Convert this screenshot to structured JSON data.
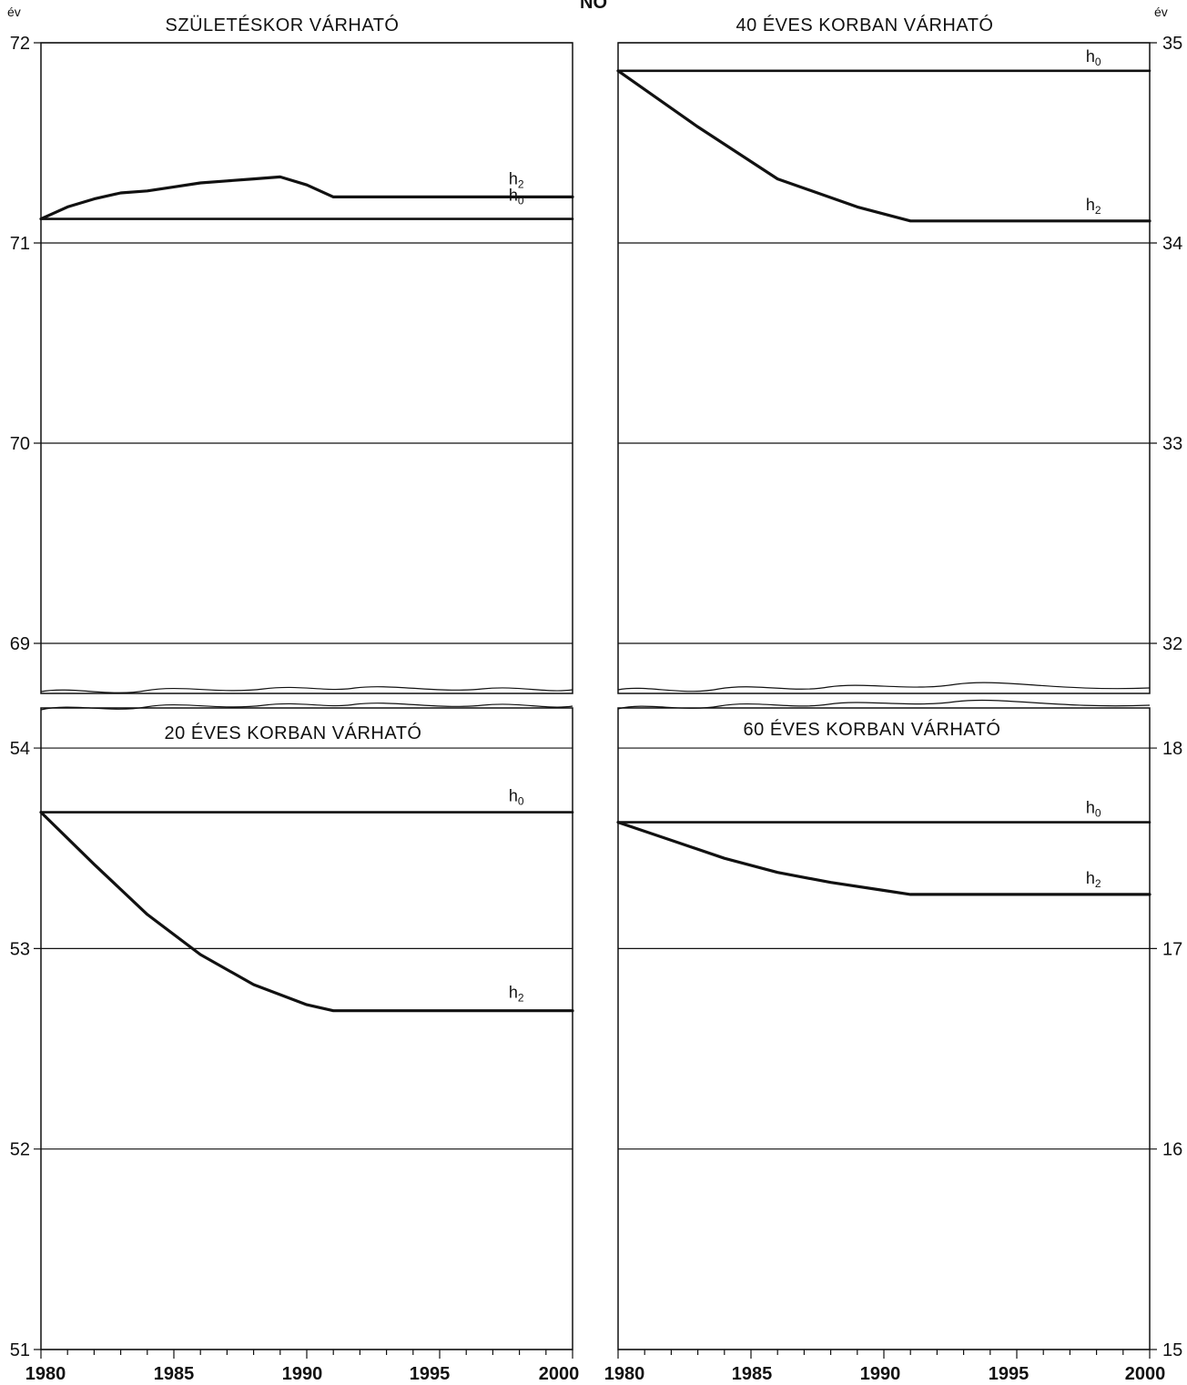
{
  "figure": {
    "heading": "NŐ",
    "unit_label": "év",
    "x_ticks": [
      "1980",
      "1985",
      "1990",
      "1995",
      "2000"
    ],
    "axis_sides": {
      "left": "left",
      "right": "right"
    }
  },
  "chart_data": [
    {
      "type": "line",
      "title": "SZÜLETÉSKOR VÁRHATÓ",
      "panel": "top-left",
      "xlabel": "",
      "ylabel": "év",
      "xlim": [
        1980,
        2000
      ],
      "ylim": [
        68.75,
        72
      ],
      "y_ticks": [
        72,
        71,
        70,
        69
      ],
      "axis_break": "bottom",
      "grid": true,
      "series": [
        {
          "name": "h0",
          "label_base": "h",
          "label_sub": "0",
          "x": [
            1980,
            2000
          ],
          "y": [
            71.12,
            71.12
          ]
        },
        {
          "name": "h2",
          "label_base": "h",
          "label_sub": "2",
          "x": [
            1980,
            1981,
            1982,
            1983,
            1984,
            1985,
            1986,
            1987,
            1988,
            1989,
            1990,
            1991,
            1995,
            2000
          ],
          "y": [
            71.12,
            71.18,
            71.22,
            71.25,
            71.26,
            71.28,
            71.3,
            71.31,
            71.32,
            71.33,
            71.29,
            71.23,
            71.23,
            71.23
          ]
        }
      ]
    },
    {
      "type": "line",
      "title": "40 ÉVES KORBAN VÁRHATÓ",
      "panel": "top-right",
      "xlabel": "",
      "ylabel": "év",
      "xlim": [
        1980,
        2000
      ],
      "ylim": [
        31.75,
        35
      ],
      "y_ticks": [
        35,
        34,
        33,
        32
      ],
      "axis_break": "bottom",
      "grid": true,
      "series": [
        {
          "name": "h0",
          "label_base": "h",
          "label_sub": "0",
          "x": [
            1980,
            2000
          ],
          "y": [
            34.86,
            34.86
          ]
        },
        {
          "name": "h2",
          "label_base": "h",
          "label_sub": "2",
          "x": [
            1980,
            1983,
            1986,
            1989,
            1991,
            1995,
            2000
          ],
          "y": [
            34.86,
            34.58,
            34.32,
            34.18,
            34.11,
            34.11,
            34.11
          ]
        }
      ]
    },
    {
      "type": "line",
      "title": "20 ÉVES KORBAN VÁRHATÓ",
      "panel": "bottom-left",
      "xlabel": "",
      "ylabel": "",
      "xlim": [
        1980,
        2000
      ],
      "ylim": [
        51,
        54.2
      ],
      "y_ticks": [
        54,
        53,
        52,
        51
      ],
      "axis_break": "top",
      "grid": true,
      "series": [
        {
          "name": "h0",
          "label_base": "h",
          "label_sub": "0",
          "x": [
            1980,
            2000
          ],
          "y": [
            53.68,
            53.68
          ]
        },
        {
          "name": "h2",
          "label_base": "h",
          "label_sub": "2",
          "x": [
            1980,
            1982,
            1984,
            1986,
            1988,
            1990,
            1991,
            1995,
            2000
          ],
          "y": [
            53.68,
            53.42,
            53.17,
            52.97,
            52.82,
            52.72,
            52.69,
            52.69,
            52.69
          ]
        }
      ]
    },
    {
      "type": "line",
      "title": "60 ÉVES KORBAN VÁRHATÓ",
      "panel": "bottom-right",
      "xlabel": "",
      "ylabel": "",
      "xlim": [
        1980,
        2000
      ],
      "ylim": [
        15,
        18.2
      ],
      "y_ticks": [
        18,
        17,
        16,
        15
      ],
      "axis_break": "top",
      "grid": true,
      "series": [
        {
          "name": "h0",
          "label_base": "h",
          "label_sub": "0",
          "x": [
            1980,
            2000
          ],
          "y": [
            17.63,
            17.63
          ]
        },
        {
          "name": "h2",
          "label_base": "h",
          "label_sub": "2",
          "x": [
            1980,
            1982,
            1984,
            1986,
            1988,
            1990,
            1991,
            1995,
            2000
          ],
          "y": [
            17.63,
            17.54,
            17.45,
            17.38,
            17.33,
            17.29,
            17.27,
            17.27,
            17.27
          ]
        }
      ]
    }
  ]
}
